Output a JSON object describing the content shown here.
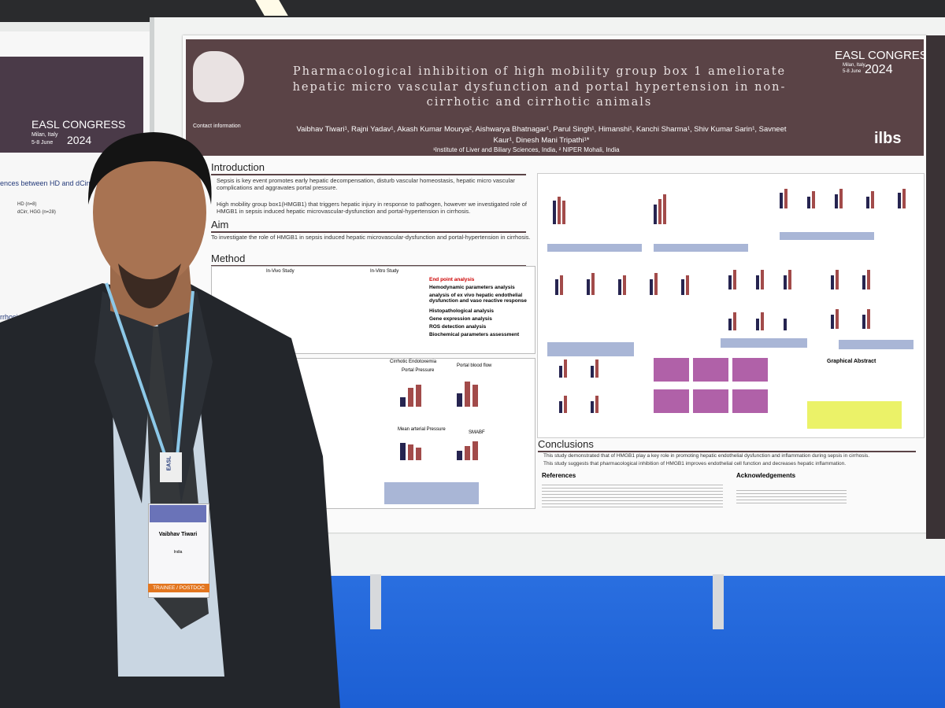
{
  "left_poster": {
    "congress": "EASL CONGRESS",
    "place": "Milan, Italy",
    "dates": "5-8 June",
    "year": "2024",
    "heading": "ences between HD and dCirr HGG",
    "legend": [
      "HD (n=8)",
      "dCirr, HGG (n=28)"
    ],
    "footer": "rrhosis and HGG"
  },
  "poster": {
    "title": "Pharmacological inhibition of high mobility group box 1 ameliorate hepatic micro vascular dysfunction and portal hypertension in non-cirrhotic and cirrhotic animals",
    "authors": "Vaibhav Tiwari¹, Rajni Yadav¹, Akash Kumar Mourya², Aishwarya Bhatnagar¹, Parul Singh¹, Himanshi¹, Kanchi Sharma¹, Shiv Kumar Sarin¹, Savneet Kaur¹, Dinesh Mani Tripathi¹*",
    "affiliation": "¹Institute of Liver and Biliary Sciences, India, ² NIPER Mohali, India",
    "contact": "Contact information",
    "congress": "EASL CONGRESS",
    "place": "Milan, Italy",
    "dates": "5-8 June",
    "year": "2024",
    "logo": "ilbs",
    "introduction": {
      "heading": "Introduction",
      "paragraphs": [
        "Sepsis is key event promotes early hepatic decompensation, disturb vascular homeostasis, hepatic micro vascular complications and aggravates portal pressure.",
        "High mobility group box1(HMGB1) that triggers hepatic injury in response to pathogen, however we investigated role of HMGB1 in sepsis induced hepatic microvascular-dysfunction and portal-hypertension in cirrhosis."
      ]
    },
    "aim": {
      "heading": "Aim",
      "text": "To investigate the role of HMGB1 in sepsis induced hepatic microvascular-dysfunction and portal-hypertension in cirrhosis."
    },
    "method": {
      "heading": "Method",
      "in_vivo": "In-Vivo Study",
      "in_vitro": "In-Vitro Study",
      "endpoints": [
        "End point analysis",
        "Hemodynamic parameters analysis",
        "analysis of ex vivo hepatic endothelial dysfunction and vaso reactive response",
        "Histopathological analysis",
        "Gene expression analysis",
        "ROS detection analysis",
        "Biochemical parameters assessment"
      ]
    },
    "results": {
      "cirrhotic": "Cirrhotic Endotoxemia",
      "panels": [
        "Portal Pressure",
        "Portal blood flow",
        "Mean arterial Pressure",
        "SMABF"
      ]
    },
    "graphical_abstract": "Graphical Abstract",
    "conclusions": {
      "heading": "Conclusions",
      "items": [
        "This study demonstrated that of HMGB1 play a key role in promoting hepatic endothelial dysfunction and inflammation during sepsis in cirrhosis.",
        "This study suggests that pharmacological inhibition of HMGB1 improves endothelial cell function and decreases hepatic inflammation."
      ]
    },
    "references": "References",
    "acknowledgements": "Acknowledgements"
  },
  "badge": {
    "event": "EASL",
    "name": "Vaibhav Tiwari",
    "country": "India",
    "role": "TRAINEE / POSTDOC"
  }
}
